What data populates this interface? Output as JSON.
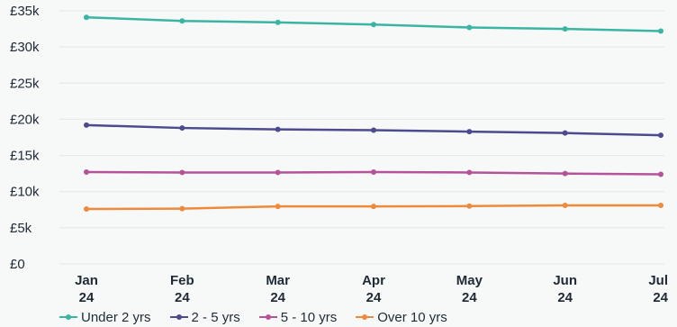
{
  "chart_data": {
    "type": "line",
    "categories": [
      "Jan 24",
      "Feb 24",
      "Mar 24",
      "Apr 24",
      "May 24",
      "Jun 24",
      "Jul 24"
    ],
    "x_tick_labels": [
      [
        "Jan",
        "24"
      ],
      [
        "Feb",
        "24"
      ],
      [
        "Mar",
        "24"
      ],
      [
        "Apr",
        "24"
      ],
      [
        "May",
        "24"
      ],
      [
        "Jun",
        "24"
      ],
      [
        "Jul",
        "24"
      ]
    ],
    "y_ticks": [
      0,
      5000,
      10000,
      15000,
      20000,
      25000,
      30000,
      35000
    ],
    "y_tick_labels": [
      "£0",
      "£5k",
      "£10k",
      "£15k",
      "£20k",
      "£25k",
      "£30k",
      "£35k"
    ],
    "ylim": [
      0,
      35000
    ],
    "grid": true,
    "legend_position": "bottom",
    "series": [
      {
        "name": "Under 2 yrs",
        "color": "#3bb5a3",
        "values": [
          34100,
          33600,
          33400,
          33100,
          32700,
          32500,
          32200
        ]
      },
      {
        "name": "2 - 5 yrs",
        "color": "#4e4a8f",
        "values": [
          19200,
          18800,
          18600,
          18500,
          18300,
          18100,
          17800
        ]
      },
      {
        "name": "5 - 10 yrs",
        "color": "#b5529a",
        "values": [
          12700,
          12650,
          12650,
          12700,
          12650,
          12500,
          12400
        ]
      },
      {
        "name": "Over 10 yrs",
        "color": "#ee8a3c",
        "values": [
          7600,
          7650,
          7950,
          7950,
          8000,
          8100,
          8100
        ]
      }
    ]
  }
}
